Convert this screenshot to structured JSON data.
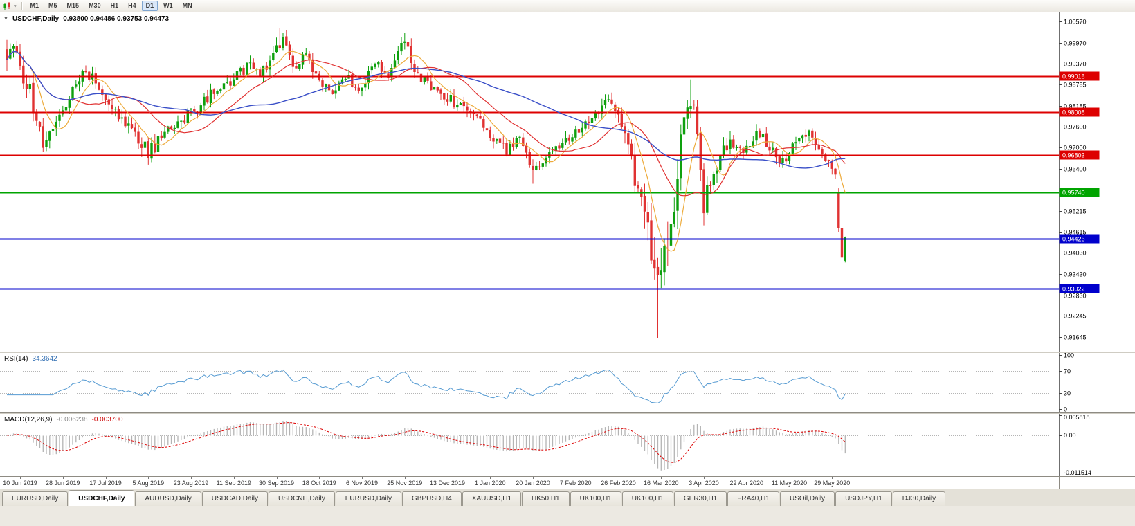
{
  "icons": {
    "collapse_arrow": "▼",
    "dropdown_arrow": "▾"
  },
  "toolbar": {
    "timeframes": [
      "M1",
      "M5",
      "M15",
      "M30",
      "H1",
      "H4",
      "D1",
      "W1",
      "MN"
    ],
    "active": "D1"
  },
  "chart": {
    "symbol_title": "USDCHF,Daily",
    "ohlc": "0.93800 0.94486 0.93753 0.94473"
  },
  "tabs": [
    {
      "label": "EURUSD,Daily",
      "active": false
    },
    {
      "label": "USDCHF,Daily",
      "active": true
    },
    {
      "label": "AUDUSD,Daily",
      "active": false
    },
    {
      "label": "USDCAD,Daily",
      "active": false
    },
    {
      "label": "USDCNH,Daily",
      "active": false
    },
    {
      "label": "EURUSD,Daily",
      "active": false
    },
    {
      "label": "GBPUSD,H4",
      "active": false
    },
    {
      "label": "XAUUSD,H1",
      "active": false
    },
    {
      "label": "HK50,H1",
      "active": false
    },
    {
      "label": "UK100,H1",
      "active": false
    },
    {
      "label": "UK100,H1",
      "active": false
    },
    {
      "label": "GER30,H1",
      "active": false
    },
    {
      "label": "FRA40,H1",
      "active": false
    },
    {
      "label": "USOil,Daily",
      "active": false
    },
    {
      "label": "USDJPY,H1",
      "active": false
    },
    {
      "label": "DJ30,Daily",
      "active": false
    }
  ],
  "chart_data": {
    "type": "candlestick",
    "symbol": "USDCHF",
    "timeframe": "Daily",
    "last_bar": {
      "open": 0.938,
      "high": 0.94486,
      "low": 0.93753,
      "close": 0.94473
    },
    "bars_total": 256,
    "price_axis": {
      "price_min": 0.91234,
      "price_max": 1.00824,
      "ticks": [
        "1.00570",
        "0.99970",
        "0.99370",
        "0.98785",
        "0.98185",
        "0.97600",
        "0.97000",
        "0.96400",
        "0.95815",
        "0.95215",
        "0.94615",
        "0.94030",
        "0.93430",
        "0.92830",
        "0.92245",
        "0.91645"
      ]
    },
    "hlines": [
      {
        "value": 0.99016,
        "label": "0.99016",
        "color": "#dd0000",
        "width": 2
      },
      {
        "value": 0.98008,
        "label": "0.98008",
        "color": "#dd0000",
        "width": 2
      },
      {
        "value": 0.96803,
        "label": "0.96803",
        "color": "#dd0000",
        "width": 2
      },
      {
        "value": 0.9574,
        "label": "0.95740",
        "color": "#00a400",
        "width": 2
      },
      {
        "value": 0.94426,
        "label": "0.94426",
        "color": "#0000cc",
        "width": 2
      },
      {
        "value": 0.93022,
        "label": "0.93022",
        "color": "#0000cc",
        "width": 2
      }
    ],
    "anchors": [
      [
        0,
        0.9945,
        0.006
      ],
      [
        2,
        0.9985,
        0.006
      ],
      [
        4,
        0.9925,
        0.0055
      ],
      [
        7,
        0.986,
        0.005
      ],
      [
        11,
        0.97,
        0.005
      ],
      [
        14,
        0.9768,
        0.0042
      ],
      [
        18,
        0.983,
        0.004
      ],
      [
        24,
        0.9915,
        0.004
      ],
      [
        28,
        0.9878,
        0.0038
      ],
      [
        33,
        0.9808,
        0.004
      ],
      [
        38,
        0.9752,
        0.0045
      ],
      [
        43,
        0.9688,
        0.0048
      ],
      [
        47,
        0.9725,
        0.0042
      ],
      [
        52,
        0.9778,
        0.0038
      ],
      [
        57,
        0.98,
        0.0036
      ],
      [
        62,
        0.9852,
        0.0036
      ],
      [
        68,
        0.9882,
        0.0036
      ],
      [
        73,
        0.9932,
        0.004
      ],
      [
        77,
        0.99,
        0.0036
      ],
      [
        82,
        0.9988,
        0.0042
      ],
      [
        84,
        1.0006,
        0.004
      ],
      [
        87,
        0.993,
        0.004
      ],
      [
        91,
        0.9962,
        0.0036
      ],
      [
        95,
        0.988,
        0.0036
      ],
      [
        99,
        0.9856,
        0.0034
      ],
      [
        103,
        0.9902,
        0.0034
      ],
      [
        107,
        0.9862,
        0.0034
      ],
      [
        112,
        0.994,
        0.0034
      ],
      [
        116,
        0.9902,
        0.0034
      ],
      [
        119,
        0.9972,
        0.0036
      ],
      [
        121,
        0.9992,
        0.004
      ],
      [
        125,
        0.9906,
        0.0038
      ],
      [
        131,
        0.9862,
        0.0034
      ],
      [
        137,
        0.9822,
        0.0034
      ],
      [
        143,
        0.9782,
        0.0034
      ],
      [
        148,
        0.9716,
        0.0036
      ],
      [
        152,
        0.9692,
        0.0034
      ],
      [
        156,
        0.9722,
        0.0034
      ],
      [
        160,
        0.9628,
        0.0036
      ],
      [
        164,
        0.9672,
        0.0034
      ],
      [
        168,
        0.9704,
        0.0034
      ],
      [
        173,
        0.9748,
        0.0034
      ],
      [
        178,
        0.9792,
        0.0034
      ],
      [
        183,
        0.9838,
        0.0036
      ],
      [
        186,
        0.9798,
        0.0044
      ],
      [
        189,
        0.9682,
        0.0062
      ],
      [
        193,
        0.9556,
        0.0085
      ],
      [
        196,
        0.9416,
        0.0105
      ],
      [
        198,
        0.9292,
        0.013
      ],
      [
        200,
        0.9378,
        0.012
      ],
      [
        202,
        0.9488,
        0.0112
      ],
      [
        204,
        0.9622,
        0.0105
      ],
      [
        206,
        0.9772,
        0.01
      ],
      [
        208,
        0.9856,
        0.0092
      ],
      [
        210,
        0.9705,
        0.0088
      ],
      [
        212,
        0.9542,
        0.008
      ],
      [
        214,
        0.959,
        0.006
      ],
      [
        217,
        0.9678,
        0.005
      ],
      [
        220,
        0.9712,
        0.0046
      ],
      [
        224,
        0.9682,
        0.004
      ],
      [
        228,
        0.9742,
        0.004
      ],
      [
        232,
        0.9702,
        0.0038
      ],
      [
        236,
        0.9662,
        0.0038
      ],
      [
        240,
        0.9726,
        0.0036
      ],
      [
        244,
        0.9742,
        0.0036
      ],
      [
        247,
        0.9706,
        0.0036
      ],
      [
        250,
        0.9652,
        0.0036
      ],
      [
        252,
        0.9612,
        0.004
      ],
      [
        253,
        0.959,
        0.0045
      ],
      [
        255,
        0.9447,
        0.006
      ]
    ],
    "forced_highs": [
      [
        83,
        1.0038
      ],
      [
        121,
        1.0024
      ],
      [
        208,
        0.9893
      ]
    ],
    "forced_lows": [
      [
        11,
        0.9692
      ],
      [
        43,
        0.9652
      ],
      [
        160,
        0.9598
      ],
      [
        198,
        0.9162
      ],
      [
        212,
        0.9497
      ]
    ],
    "last_bars": [
      {
        "o": 0.9571,
        "h": 0.9585,
        "l": 0.9462,
        "c": 0.9473
      },
      {
        "o": 0.9473,
        "h": 0.9481,
        "l": 0.9348,
        "c": 0.9389
      },
      {
        "o": 0.938,
        "h": 0.94486,
        "l": 0.93753,
        "c": 0.94473
      }
    ],
    "moving_averages": [
      {
        "period": 8,
        "color": "#edaa3a",
        "width": 1.2
      },
      {
        "period": 21,
        "color": "#e03030",
        "width": 1.2
      },
      {
        "period": 55,
        "color": "#3a4fc8",
        "width": 1.4
      }
    ],
    "rsi": {
      "name": "RSI(14)",
      "value": "34.3642",
      "period": 14,
      "axis_labels": [
        "100",
        "70",
        "30",
        "0"
      ],
      "dotted_levels": [
        70,
        30
      ],
      "color": "#569bd2"
    },
    "macd": {
      "name": "MACD(12,26,9)",
      "value_main": "-0.006238",
      "value_signal": "-0.003700",
      "fast": 12,
      "slow": 26,
      "signal": 9,
      "axis_labels": [
        "0.005818",
        "0.00",
        "-0.011514"
      ],
      "max": 0.005818,
      "min": -0.011514,
      "hist_color": "#b4b4b4",
      "signal_color": "#dd0000"
    },
    "date_labels": [
      "10 Jun 2019",
      "28 Jun 2019",
      "17 Jul 2019",
      "5 Aug 2019",
      "23 Aug 2019",
      "11 Sep 2019",
      "30 Sep 2019",
      "18 Oct 2019",
      "6 Nov 2019",
      "25 Nov 2019",
      "13 Dec 2019",
      "1 Jan 2020",
      "20 Jan 2020",
      "7 Feb 2020",
      "26 Feb 2020",
      "16 Mar 2020",
      "3 Apr 2020",
      "22 Apr 2020",
      "11 May 2020",
      "29 May 2020"
    ],
    "first_label_bar": 4,
    "label_step_bars": 13,
    "colors": {
      "up": "#0ea00e",
      "down": "#e03232",
      "axis_line": "#6f6f6f",
      "grid_dotted": "#b5b5b5"
    }
  }
}
